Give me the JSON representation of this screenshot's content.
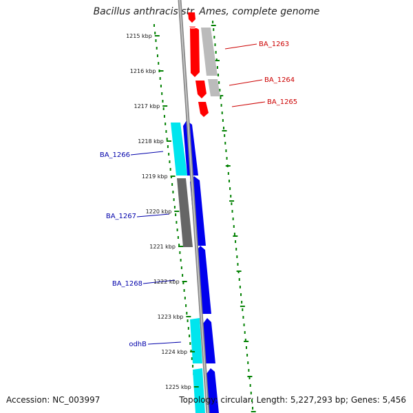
{
  "header": {
    "title": "Bacillus anthracis str. Ames, complete genome"
  },
  "footer": {
    "accession": "Accession: NC_003997",
    "summary": "Topology: circular; Length: 5,227,293 bp; Genes: 5,456"
  },
  "scale": {
    "unit": "kbp",
    "ticks": [
      "1215 kbp",
      "1216 kbp",
      "1217 kbp",
      "1218 kbp",
      "1219 kbp",
      "1220 kbp",
      "1221 kbp",
      "1222 kbp",
      "1223 kbp",
      "1224 kbp",
      "1225 kbp"
    ]
  },
  "genes": {
    "forward": [
      {
        "label": "BA_1263",
        "color": "#cc0000"
      },
      {
        "label": "BA_1264",
        "color": "#cc0000"
      },
      {
        "label": "BA_1265",
        "color": "#cc0000"
      }
    ],
    "reverse": [
      {
        "label": "BA_1266",
        "color": "#0000aa"
      },
      {
        "label": "BA_1267",
        "color": "#0000aa"
      },
      {
        "label": "BA_1268",
        "color": "#0000aa"
      },
      {
        "label": "odhB",
        "color": "#0000aa"
      }
    ]
  },
  "colors": {
    "forward_cds": "#ff0000",
    "reverse_cds": "#0000ee",
    "forward_gene_track": "#bbbbbb",
    "reverse_gene_track": "#00e5ee",
    "backbone": "#888888",
    "tick": "#008000"
  }
}
